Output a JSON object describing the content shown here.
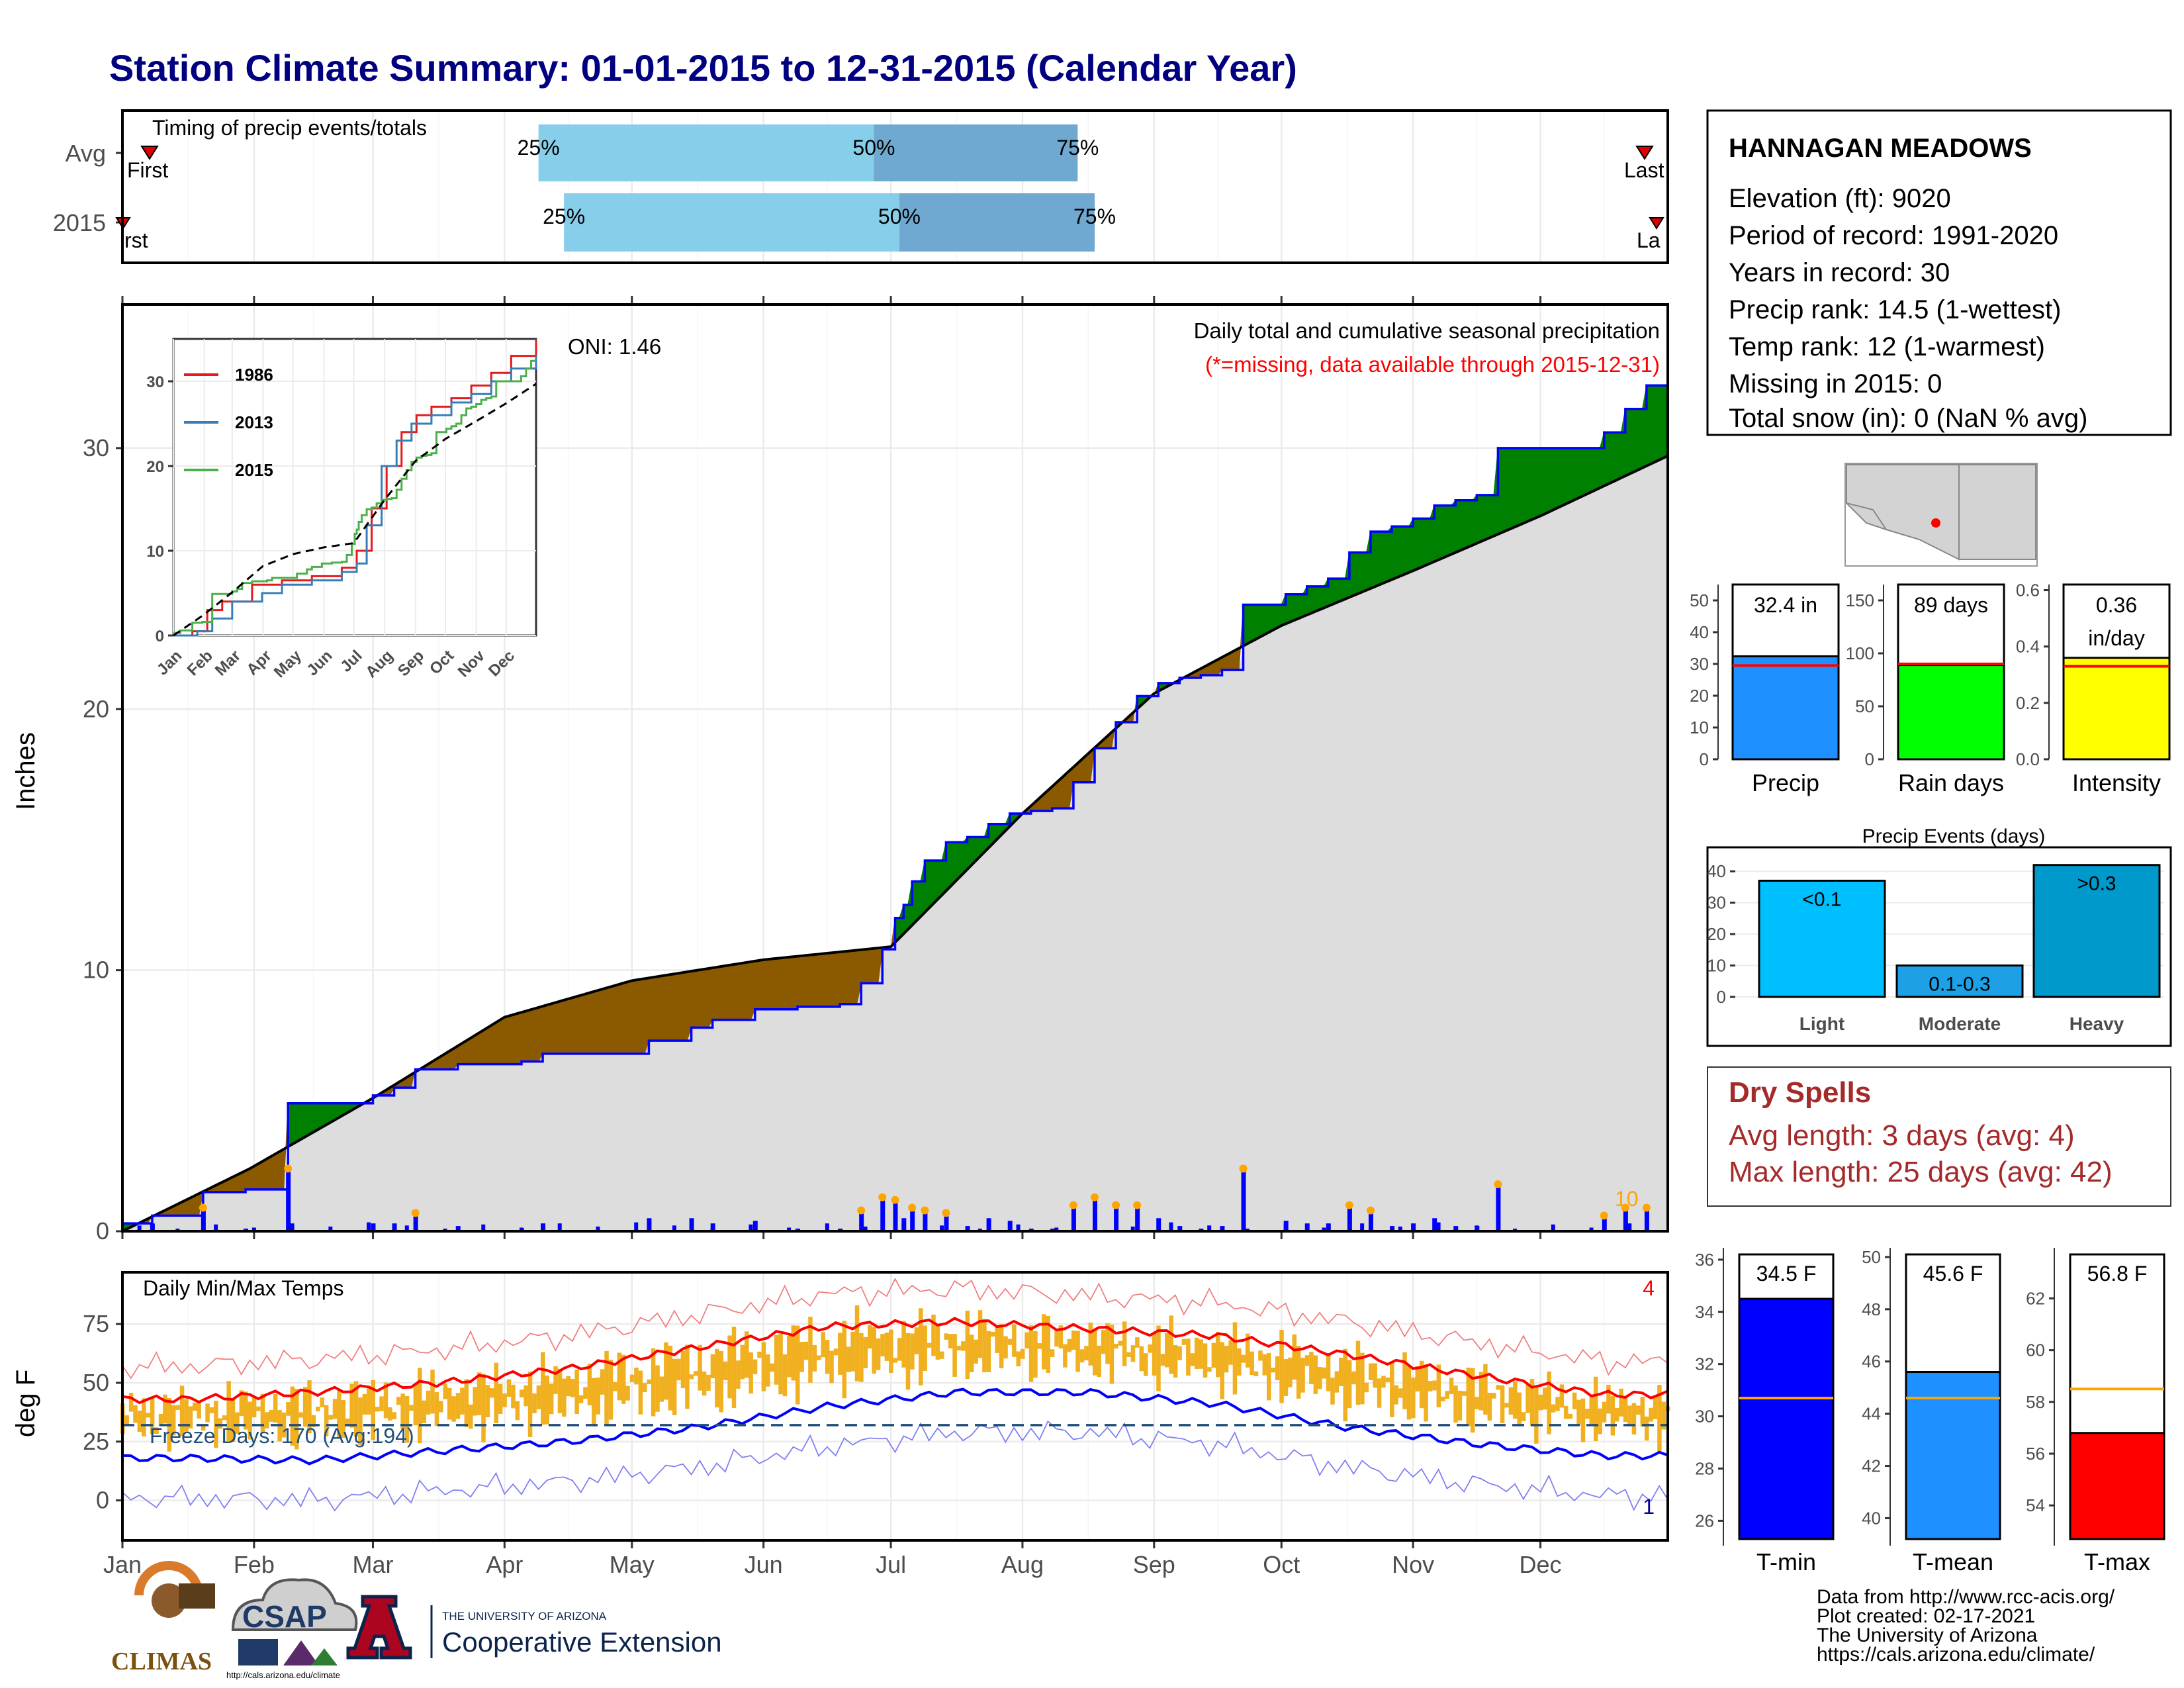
{
  "title": "Station Climate Summary: 01-01-2015 to 12-31-2015 (Calendar Year)",
  "colors": {
    "title": "#000080",
    "above_avg": "#008000",
    "below_avg": "#8b5a00",
    "fill_base": "#dddddd",
    "cum_line": "#0000ff",
    "bar_q": "#87ceeb",
    "bar_q2": "#6fa8d0",
    "tmax": "#ff0000",
    "tmin": "#0000ff",
    "trange": "#f0b020",
    "rain_days": "#00ff00",
    "intensity": "#ffff00",
    "precip": "#1e90ff"
  },
  "timing": {
    "label": "Timing of precip events/totals",
    "rows": [
      "Avg",
      "2015"
    ],
    "first_label": "First",
    "first_label_2015": "rst",
    "last_label": "Last",
    "last_label_2015": "La",
    "q_labels": [
      "25%",
      "50%",
      "75%"
    ],
    "avg_quartiles_doy": [
      99,
      178,
      226
    ],
    "y2015_quartiles_doy": [
      105,
      184,
      230
    ]
  },
  "months": [
    "Jan",
    "Feb",
    "Mar",
    "Apr",
    "May",
    "Jun",
    "Jul",
    "Aug",
    "Sep",
    "Oct",
    "Nov",
    "Dec"
  ],
  "precip_panel": {
    "ylabel": "Inches",
    "yticks": [
      "0",
      "10",
      "20",
      "30"
    ],
    "subtitle": "Daily total and cumulative seasonal precipitation",
    "missing_note": "(*=missing, data available through 2015-12-31)",
    "oni": "ONI: 1.46",
    "bar_count": "10",
    "inset": {
      "yticks": [
        "0",
        "10",
        "20",
        "30"
      ],
      "legend": [
        "1986",
        "2013",
        "2015"
      ],
      "series_colors": [
        "#e41a1c",
        "#377eb8",
        "#4daf4a"
      ]
    }
  },
  "temp_panel": {
    "ylabel": "deg F",
    "title": "Daily Min/Max Temps",
    "yticks": [
      "0",
      "25",
      "50",
      "75"
    ],
    "freeze": "Freeze Days: 170 (Avg:194)",
    "count_top": "4",
    "count_bottom": "1"
  },
  "station": {
    "name": "HANNAGAN MEADOWS",
    "lines": [
      "Elevation (ft): 9020",
      "Period of record: 1991-2020",
      "Years in record: 30",
      "Precip rank: 14.5 (1-wettest)",
      "Temp rank: 12 (1-warmest)",
      "Missing in 2015: 0",
      "Total snow (in): 0 (NaN % avg)"
    ]
  },
  "summary_bars": [
    {
      "label": "Precip",
      "value_text": "32.4 in",
      "value": 32.4,
      "avg": 29.5,
      "ymax": 55,
      "ticks": [
        "0",
        "10",
        "20",
        "30",
        "40",
        "50"
      ]
    },
    {
      "label": "Rain days",
      "value_text": "89 days",
      "value": 89,
      "avg": 90,
      "ymax": 165,
      "ticks": [
        "0",
        "50",
        "100",
        "150"
      ]
    },
    {
      "label": "Intensity",
      "value_text": "0.36",
      "value_text2": "in/day",
      "value": 0.36,
      "avg": 0.33,
      "ymax": 0.62,
      "ticks": [
        "0.0",
        "0.2",
        "0.4",
        "0.6"
      ]
    }
  ],
  "events": {
    "title": "Precip Events (days)",
    "categories": [
      "Light",
      "Moderate",
      "Heavy"
    ],
    "bar_labels": [
      "<0.1",
      "0.1-0.3",
      ">0.3"
    ],
    "values": [
      37,
      10,
      42
    ],
    "ticks": [
      "0",
      "10",
      "20",
      "30",
      "40"
    ]
  },
  "dry_spells": {
    "title": "Dry Spells",
    "avg": "Avg length: 3 days (avg: 4)",
    "max": "Max length: 25 days (avg: 42)"
  },
  "temp_bars": [
    {
      "label": "T-min",
      "value_text": "34.5 F",
      "value": 34.5,
      "avg": 30.7,
      "ymin": 25.3,
      "ymax": 36.2,
      "ticks": [
        "26",
        "28",
        "30",
        "32",
        "34",
        "36"
      ]
    },
    {
      "label": "T-mean",
      "value_text": "45.6 F",
      "value": 45.6,
      "avg": 44.6,
      "ymin": 39.2,
      "ymax": 50.1,
      "ticks": [
        "40",
        "42",
        "44",
        "46",
        "48",
        "50"
      ]
    },
    {
      "label": "T-max",
      "value_text": "56.8 F",
      "value": 56.8,
      "avg": 58.5,
      "ymin": 52.7,
      "ymax": 63.7,
      "ticks": [
        "54",
        "56",
        "58",
        "60",
        "62"
      ]
    }
  ],
  "footer": {
    "lines": [
      "Data from http://www.rcc-acis.org/",
      "Plot created: 02-17-2021",
      "The University of Arizona",
      "https://cals.arizona.edu/climate/"
    ],
    "climas": "CLIMAS",
    "csap": "CSAP",
    "csap_url": "http://cals.arizona.edu/climate",
    "ua_small": "THE UNIVERSITY OF ARIZONA",
    "ua_big": "Cooperative Extension"
  },
  "chart_data": [
    {
      "type": "area",
      "title": "Daily total and cumulative seasonal precipitation",
      "ylabel": "Inches",
      "ylim": [
        0,
        35.5
      ],
      "x_unit": "day of year 2015",
      "series": [
        {
          "name": "2015",
          "x": [
            1,
            8,
            20,
            30,
            40,
            50,
            55,
            60,
            65,
            70,
            80,
            90,
            95,
            100,
            110,
            115,
            125,
            135,
            140,
            150,
            160,
            170,
            175,
            180,
            183,
            185,
            187,
            190,
            195,
            200,
            205,
            210,
            215,
            220,
            225,
            230,
            235,
            240,
            245,
            250,
            255,
            260,
            265,
            270,
            275,
            280,
            285,
            290,
            295,
            300,
            305,
            310,
            315,
            320,
            325,
            330,
            335,
            340,
            345,
            350,
            355,
            360,
            365
          ],
          "values": [
            0.3,
            0.6,
            1.5,
            1.6,
            4.9,
            4.9,
            4.9,
            5.2,
            5.5,
            6.2,
            6.4,
            6.4,
            6.5,
            6.8,
            6.8,
            6.8,
            7.3,
            7.8,
            8.1,
            8.5,
            8.6,
            8.7,
            9.5,
            10.8,
            12.0,
            12.5,
            13.4,
            14.2,
            14.9,
            15.1,
            15.6,
            16.0,
            16.1,
            16.2,
            17.2,
            18.5,
            19.5,
            20.5,
            21.0,
            21.2,
            21.3,
            21.5,
            24.0,
            24.0,
            24.4,
            24.7,
            25.0,
            26.0,
            26.8,
            27.0,
            27.3,
            27.8,
            28.0,
            28.2,
            30.0,
            30.0,
            30.0,
            30.0,
            30.0,
            30.6,
            31.5,
            32.4,
            32.4
          ]
        },
        {
          "name": "Avg",
          "x": [
            1,
            31,
            60,
            91,
            121,
            152,
            182,
            213,
            244,
            274,
            305,
            335,
            365
          ],
          "values": [
            0,
            2.4,
            5.1,
            8.2,
            9.6,
            10.4,
            10.9,
            16.0,
            20.6,
            23.2,
            25.3,
            27.4,
            29.7
          ]
        }
      ],
      "daily_bar_max_in": 2.4
    },
    {
      "type": "line",
      "title": "Daily Min/Max Temps",
      "ylabel": "deg F",
      "ylim": [
        -17,
        97
      ],
      "x": [
        "Jan",
        "Feb",
        "Mar",
        "Apr",
        "May",
        "Jun",
        "Jul",
        "Aug",
        "Sep",
        "Oct",
        "Nov",
        "Dec"
      ],
      "series": [
        {
          "name": "Avg max",
          "values": [
            43,
            46,
            50,
            56,
            65,
            74,
            76,
            73,
            70,
            62,
            53,
            45
          ]
        },
        {
          "name": "Avg min",
          "values": [
            18,
            17,
            21,
            25,
            31,
            40,
            46,
            46,
            41,
            31,
            24,
            19
          ]
        },
        {
          "name": "Freeze threshold",
          "values": [
            32,
            32,
            32,
            32,
            32,
            32,
            32,
            32,
            32,
            32,
            32,
            32
          ]
        }
      ]
    }
  ]
}
